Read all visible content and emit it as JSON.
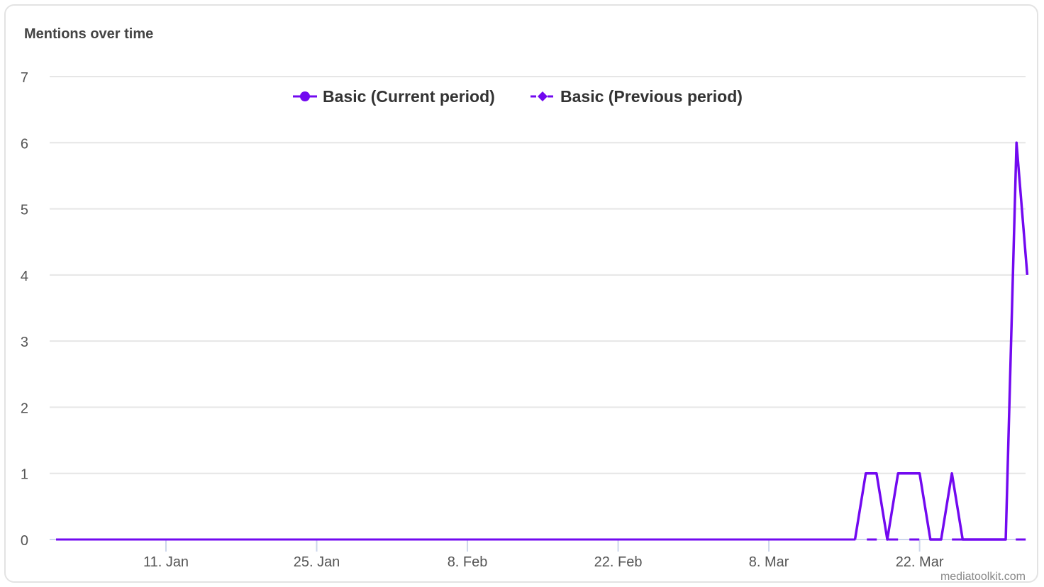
{
  "chart_data": {
    "type": "line",
    "title": "Mentions over time",
    "xlabel": "",
    "ylabel": "",
    "ylim": [
      0,
      7
    ],
    "yticks": [
      0,
      1,
      2,
      3,
      4,
      5,
      6,
      7
    ],
    "x_start": "2021-12-31",
    "x_end": "2022-03-31",
    "xticks": [
      {
        "label": "11. Jan",
        "date": "2022-01-11"
      },
      {
        "label": "25. Jan",
        "date": "2022-01-25"
      },
      {
        "label": "8. Feb",
        "date": "2022-02-08"
      },
      {
        "label": "22. Feb",
        "date": "2022-02-22"
      },
      {
        "label": "8. Mar",
        "date": "2022-03-08"
      },
      {
        "label": "22. Mar",
        "date": "2022-03-22"
      }
    ],
    "grid": true,
    "legend_position": "top-center",
    "series": [
      {
        "name": "Basic (Current period)",
        "style": "solid",
        "color": "#7209f0",
        "points": [
          [
            "2022-03-16",
            0
          ],
          [
            "2022-03-17",
            1
          ],
          [
            "2022-03-18",
            1
          ],
          [
            "2022-03-19",
            0
          ],
          [
            "2022-03-20",
            1
          ],
          [
            "2022-03-21",
            1
          ],
          [
            "2022-03-22",
            1
          ],
          [
            "2022-03-23",
            0
          ],
          [
            "2022-03-24",
            0
          ],
          [
            "2022-03-25",
            1
          ],
          [
            "2022-03-26",
            0
          ],
          [
            "2022-03-30",
            0
          ],
          [
            "2022-03-31",
            6
          ],
          [
            "2022-04-01",
            4
          ]
        ]
      },
      {
        "name": "Basic (Previous period)",
        "style": "dashed",
        "color": "#7209f0",
        "points": [
          [
            "2022-01-01",
            0
          ],
          [
            "2022-04-01",
            0
          ]
        ]
      }
    ]
  },
  "credit": "mediatoolkit.com"
}
